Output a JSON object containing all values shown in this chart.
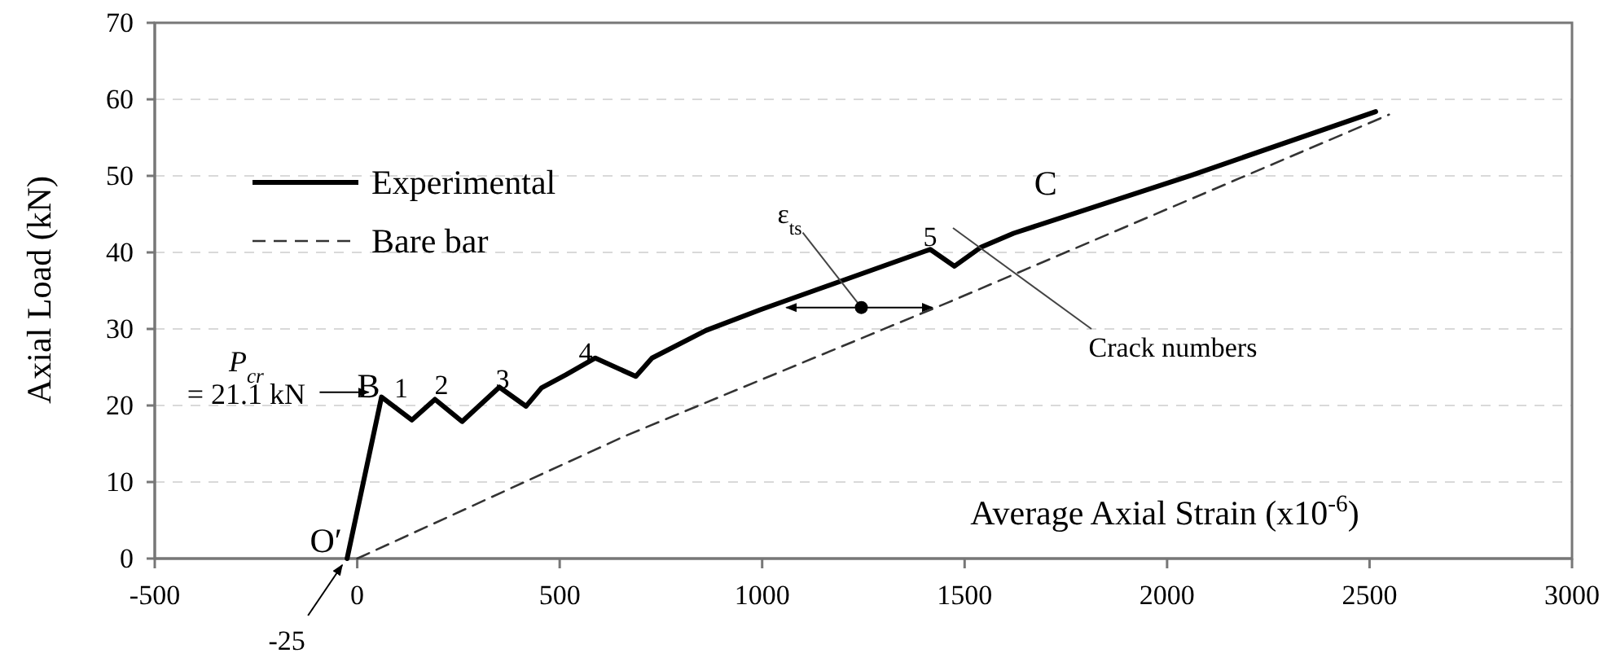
{
  "chart_data": {
    "type": "line",
    "xlabel": "Average Axial Strain (x10$^{-6}$)",
    "ylabel": "Axial Load (kN)",
    "xlim": [
      -500,
      3000
    ],
    "xticks": [
      -500,
      0,
      500,
      1000,
      1500,
      2000,
      2500,
      3000
    ],
    "ylim": [
      0,
      70
    ],
    "yticks": [
      0,
      10,
      20,
      30,
      40,
      50,
      60,
      70
    ],
    "grid": "y",
    "legend": "top left",
    "marker": "none",
    "series": [
      {
        "name": "Experimental",
        "color": "#000000",
        "line_style": "solid",
        "x": [
          -25,
          60,
          135,
          192,
          259,
          351,
          417,
          455,
          515,
          588,
          688,
          728,
          861,
          995,
          1128,
          1415,
          1475,
          1541,
          1621,
          2061,
          2515
        ],
        "values": [
          0,
          21.1,
          18.1,
          20.8,
          17.9,
          22.4,
          19.9,
          22.3,
          24.0,
          26.2,
          23.8,
          26.2,
          29.8,
          32.5,
          35.0,
          40.4,
          38.2,
          40.7,
          42.5,
          50.1,
          58.4
        ]
      },
      {
        "name": "Bare bar",
        "color": "#333333",
        "line_style": "dashed",
        "x": [
          0,
          661,
          1461,
          2548
        ],
        "values": [
          0,
          16,
          33.5,
          58
        ]
      }
    ],
    "annotations": [
      {
        "text": "P$_{cr}$\n= 21.1 kN",
        "x": 60,
        "y": 21.1
      },
      {
        "text": "B",
        "x": 60,
        "y": 21.1
      },
      {
        "text": "1",
        "x": 60,
        "y": 21.1
      },
      {
        "text": "2",
        "x": 192,
        "y": 20.8
      },
      {
        "text": "3",
        "x": 351,
        "y": 22.4
      },
      {
        "text": "4",
        "x": 588,
        "y": 26.2
      },
      {
        "text": "5",
        "x": 1415,
        "y": 40.4
      },
      {
        "text": "C",
        "x": 1700,
        "y": 43.9
      },
      {
        "text": "O′",
        "x": -25,
        "y": 0
      },
      {
        "text": "-25",
        "x": -25,
        "y": 0
      },
      {
        "text": "ε$_{ts}$",
        "x": 1245,
        "y": 32.8
      },
      "Crack numbers"
    ]
  }
}
